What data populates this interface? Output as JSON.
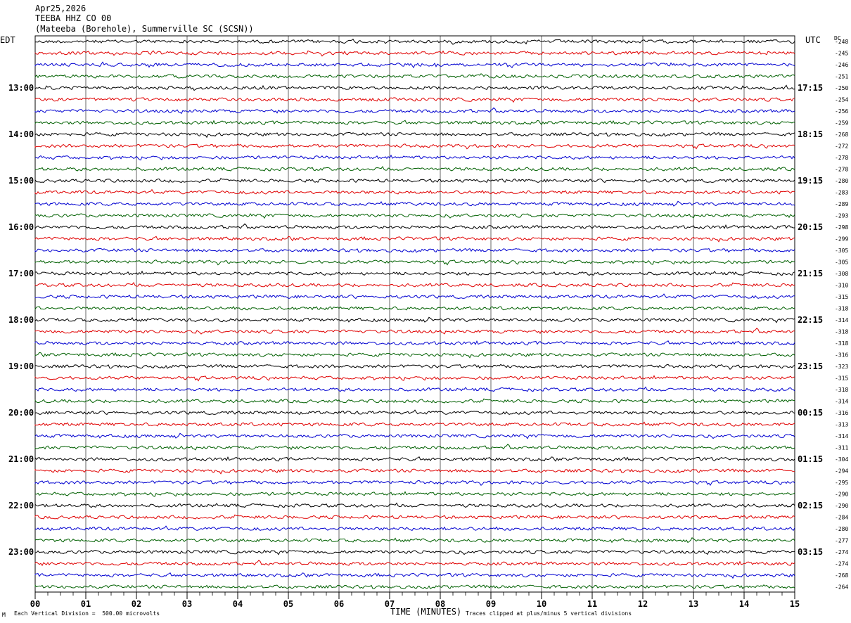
{
  "header": {
    "date": "Apr25,2026",
    "station": "TEEBA HHZ CO 00",
    "location": "(Mateeba (Borehole), Summerville SC (SCSN))"
  },
  "left_zone_label": "EDT",
  "right_zone_label": "UTC",
  "dc_label": "DC",
  "footer": {
    "scale_note": "Each Vertical Division =  500.00 microvolts",
    "clip_note": "Traces clipped at plus/minus 5 vertical divisions",
    "corner_mark": "M"
  },
  "colors": {
    "trace_cycle": [
      "#000000",
      "#e00000",
      "#0000d0",
      "#006000"
    ],
    "grid": "#000000"
  },
  "chart_data": {
    "type": "line",
    "xlabel": "TIME (MINUTES)",
    "x_ticks": [
      "00",
      "01",
      "02",
      "03",
      "04",
      "05",
      "06",
      "07",
      "08",
      "09",
      "10",
      "11",
      "12",
      "13",
      "14",
      "15"
    ],
    "xlim": [
      0,
      15
    ],
    "left_hour_labels": [
      "13:00",
      "14:00",
      "15:00",
      "16:00",
      "17:00",
      "18:00",
      "19:00",
      "20:00",
      "21:00",
      "22:00",
      "23:00"
    ],
    "right_hour_labels": [
      "17:15",
      "18:15",
      "19:15",
      "20:15",
      "21:15",
      "22:15",
      "23:15",
      "00:15",
      "01:15",
      "02:15",
      "03:15"
    ],
    "dc_offsets": [
      -248,
      -245,
      -246,
      -251,
      -250,
      -254,
      -256,
      -259,
      -268,
      -272,
      -278,
      -278,
      -280,
      -283,
      -289,
      -293,
      -298,
      -299,
      -305,
      -305,
      -308,
      -310,
      -315,
      -318,
      -314,
      -318,
      -318,
      -316,
      -323,
      -315,
      -318,
      -314,
      -316,
      -313,
      -314,
      -311,
      -304,
      -294,
      -295,
      -290,
      -290,
      -284,
      -280,
      -277,
      -274,
      -274,
      -268,
      -264
    ],
    "trace_count": 48
  }
}
